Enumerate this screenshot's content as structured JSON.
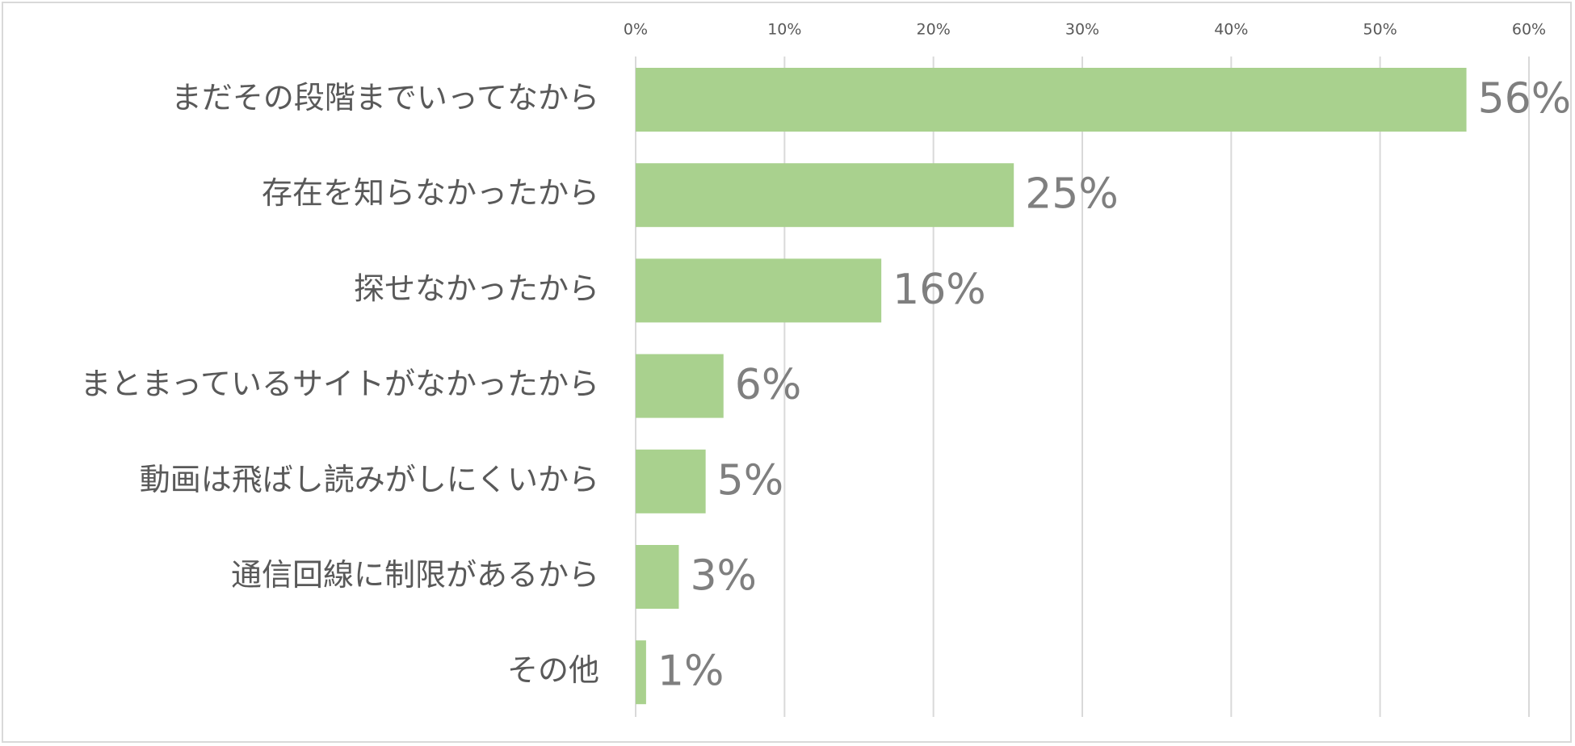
{
  "chart_data": {
    "type": "bar",
    "orientation": "horizontal",
    "categories": [
      "まだその段階までいってなから",
      "存在を知らなかったから",
      "探せなかったから",
      "まとまっているサイトがなかったから",
      "動画は飛ばし読みがしにくいから",
      "通信回線に制限があるから",
      "その他"
    ],
    "values": [
      55.8,
      25.4,
      16.5,
      5.9,
      4.7,
      2.9,
      0.7
    ],
    "data_labels": [
      "56%",
      "25%",
      "16%",
      "6%",
      "5%",
      "3%",
      "1%"
    ],
    "xlim": [
      0,
      60
    ],
    "x_ticks": [
      0,
      10,
      20,
      30,
      40,
      50,
      60
    ],
    "x_tick_labels": [
      "0%",
      "10%",
      "20%",
      "30%",
      "40%",
      "50%",
      "60%"
    ],
    "x_axis_position": "top",
    "grid": true,
    "bar_color": "#a9d18e",
    "gridline_color": "#d9d9d9",
    "text_color": "#595959",
    "data_label_color": "#7f7f7f"
  }
}
